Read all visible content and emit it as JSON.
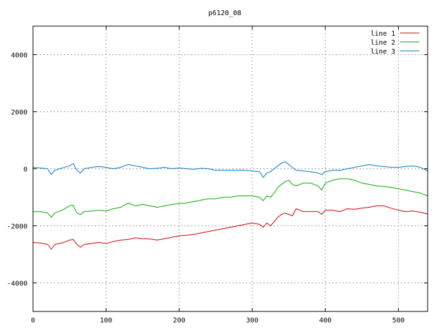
{
  "chart_data": {
    "type": "line",
    "title": "p6120_08",
    "xlabel": "",
    "ylabel": "",
    "xlim": [
      0,
      540
    ],
    "ylim": [
      -5000,
      5000
    ],
    "xticks": [
      0,
      100,
      200,
      300,
      400,
      500
    ],
    "yticks": [
      -4000,
      -2000,
      0,
      2000,
      4000
    ],
    "grid": true,
    "legend_position": "top-right",
    "series": [
      {
        "name": "line 1",
        "color": "#cc0000",
        "x": [
          0,
          10,
          20,
          25,
          30,
          40,
          50,
          55,
          60,
          65,
          70,
          80,
          90,
          100,
          110,
          120,
          130,
          140,
          150,
          160,
          170,
          180,
          190,
          200,
          210,
          220,
          230,
          240,
          250,
          260,
          270,
          280,
          290,
          300,
          310,
          315,
          320,
          325,
          330,
          335,
          340,
          345,
          350,
          355,
          360,
          370,
          380,
          390,
          395,
          400,
          410,
          420,
          430,
          440,
          450,
          460,
          470,
          480,
          490,
          500,
          510,
          520,
          530,
          540
        ],
        "y": [
          -2580,
          -2600,
          -2650,
          -2820,
          -2650,
          -2600,
          -2500,
          -2480,
          -2650,
          -2750,
          -2650,
          -2620,
          -2580,
          -2620,
          -2550,
          -2500,
          -2480,
          -2420,
          -2450,
          -2460,
          -2500,
          -2450,
          -2400,
          -2350,
          -2330,
          -2300,
          -2250,
          -2200,
          -2150,
          -2100,
          -2050,
          -2000,
          -1950,
          -1900,
          -1950,
          -2050,
          -1900,
          -2000,
          -1850,
          -1700,
          -1600,
          -1550,
          -1600,
          -1650,
          -1400,
          -1500,
          -1500,
          -1500,
          -1600,
          -1450,
          -1450,
          -1500,
          -1400,
          -1420,
          -1380,
          -1350,
          -1300,
          -1300,
          -1380,
          -1450,
          -1500,
          -1480,
          -1520,
          -1580
        ]
      },
      {
        "name": "line 2",
        "color": "#00aa00",
        "x": [
          0,
          10,
          20,
          25,
          30,
          40,
          50,
          55,
          60,
          65,
          70,
          80,
          90,
          100,
          110,
          120,
          130,
          140,
          150,
          160,
          170,
          180,
          190,
          200,
          210,
          220,
          230,
          240,
          250,
          260,
          270,
          280,
          290,
          300,
          310,
          315,
          320,
          325,
          330,
          335,
          340,
          345,
          350,
          355,
          360,
          370,
          380,
          390,
          395,
          400,
          410,
          420,
          430,
          440,
          450,
          460,
          470,
          480,
          490,
          500,
          510,
          520,
          530,
          540
        ],
        "y": [
          -1500,
          -1500,
          -1550,
          -1700,
          -1550,
          -1450,
          -1300,
          -1280,
          -1550,
          -1600,
          -1500,
          -1480,
          -1450,
          -1480,
          -1400,
          -1350,
          -1200,
          -1300,
          -1250,
          -1300,
          -1350,
          -1300,
          -1250,
          -1220,
          -1200,
          -1150,
          -1100,
          -1050,
          -1050,
          -1000,
          -1000,
          -950,
          -950,
          -950,
          -1000,
          -1120,
          -950,
          -1000,
          -850,
          -650,
          -550,
          -450,
          -400,
          -550,
          -600,
          -500,
          -500,
          -600,
          -750,
          -500,
          -400,
          -350,
          -350,
          -400,
          -500,
          -550,
          -600,
          -620,
          -650,
          -700,
          -750,
          -800,
          -850,
          -950
        ]
      },
      {
        "name": "line 3",
        "color": "#0077cc",
        "x": [
          0,
          10,
          20,
          25,
          30,
          40,
          50,
          55,
          60,
          65,
          70,
          80,
          90,
          100,
          110,
          120,
          130,
          140,
          150,
          160,
          170,
          180,
          190,
          200,
          210,
          220,
          230,
          240,
          250,
          260,
          270,
          280,
          290,
          300,
          310,
          315,
          320,
          325,
          330,
          335,
          340,
          345,
          350,
          355,
          360,
          370,
          380,
          390,
          395,
          400,
          410,
          420,
          430,
          440,
          450,
          460,
          470,
          480,
          490,
          500,
          510,
          520,
          530,
          540
        ],
        "y": [
          50,
          30,
          0,
          -200,
          -50,
          30,
          100,
          180,
          -50,
          -150,
          0,
          50,
          80,
          50,
          0,
          50,
          150,
          100,
          50,
          0,
          20,
          50,
          0,
          30,
          0,
          -20,
          20,
          0,
          -50,
          -50,
          -50,
          -50,
          -50,
          -80,
          -100,
          -300,
          -150,
          -100,
          0,
          100,
          200,
          250,
          150,
          50,
          -50,
          -80,
          -100,
          -150,
          -200,
          -100,
          -50,
          -50,
          0,
          50,
          100,
          150,
          100,
          80,
          50,
          50,
          80,
          100,
          50,
          -80
        ]
      }
    ]
  }
}
